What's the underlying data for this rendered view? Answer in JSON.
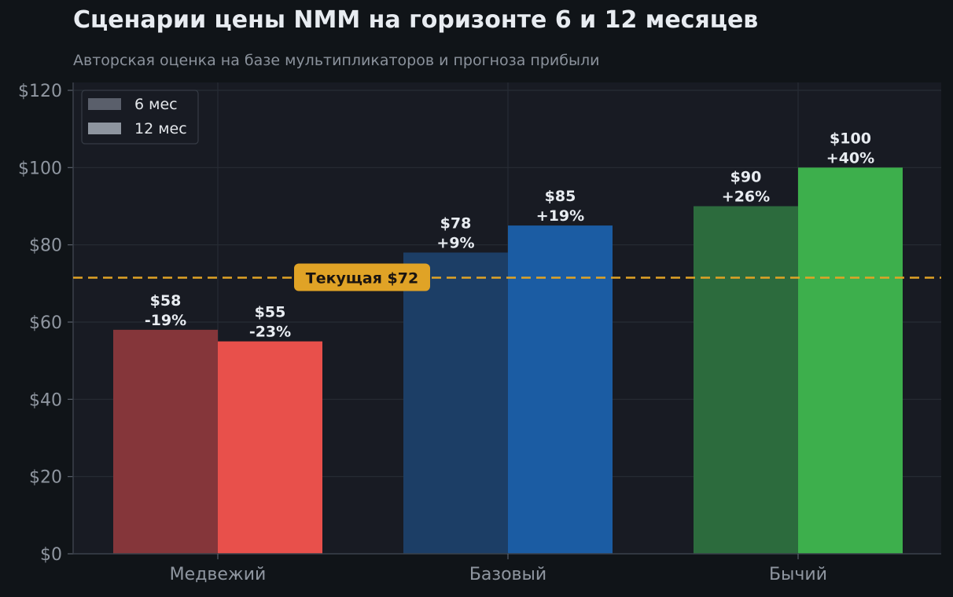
{
  "chart_data": {
    "type": "bar",
    "title": "Сценарии цены NMM на горизонте 6 и 12 месяцев",
    "subtitle": "Авторская оценка на базе мультипликаторов и прогноза прибыли",
    "categories": [
      "Медвежий",
      "Базовый",
      "Бычий"
    ],
    "series": [
      {
        "name": "6 мес",
        "values": [
          58,
          78,
          90
        ],
        "labels": [
          "-19%",
          "+9%",
          "+26%"
        ],
        "value_labels": [
          "$58",
          "$78",
          "$90"
        ],
        "colors": [
          "#85363a",
          "#1c3e66",
          "#2c6b3d"
        ]
      },
      {
        "name": "12 мес",
        "values": [
          55,
          85,
          100
        ],
        "labels": [
          "-23%",
          "+19%",
          "+40%"
        ],
        "value_labels": [
          "$55",
          "$85",
          "$100"
        ],
        "colors": [
          "#e8504b",
          "#1b5ca3",
          "#3daf4c"
        ]
      }
    ],
    "ylim": [
      0,
      120
    ],
    "yticks": [
      0,
      20,
      40,
      60,
      80,
      100,
      120
    ],
    "ytick_labels": [
      "$0",
      "$20",
      "$40",
      "$60",
      "$80",
      "$100",
      "$120"
    ],
    "reference_line": {
      "value": 71.5,
      "label": "Текущая $72",
      "color": "#e0a326"
    },
    "legend": {
      "position": "top-left",
      "entries": [
        {
          "label": "6 мес",
          "color": "#5a5f6b"
        },
        {
          "label": "12 мес",
          "color": "#8e959f"
        }
      ]
    },
    "grid": true,
    "colors": {
      "background": "#101418",
      "plot_background": "#181b23",
      "grid": "#272c35",
      "text": "#e8ecf1",
      "tick_text": "#8f96a0"
    }
  }
}
